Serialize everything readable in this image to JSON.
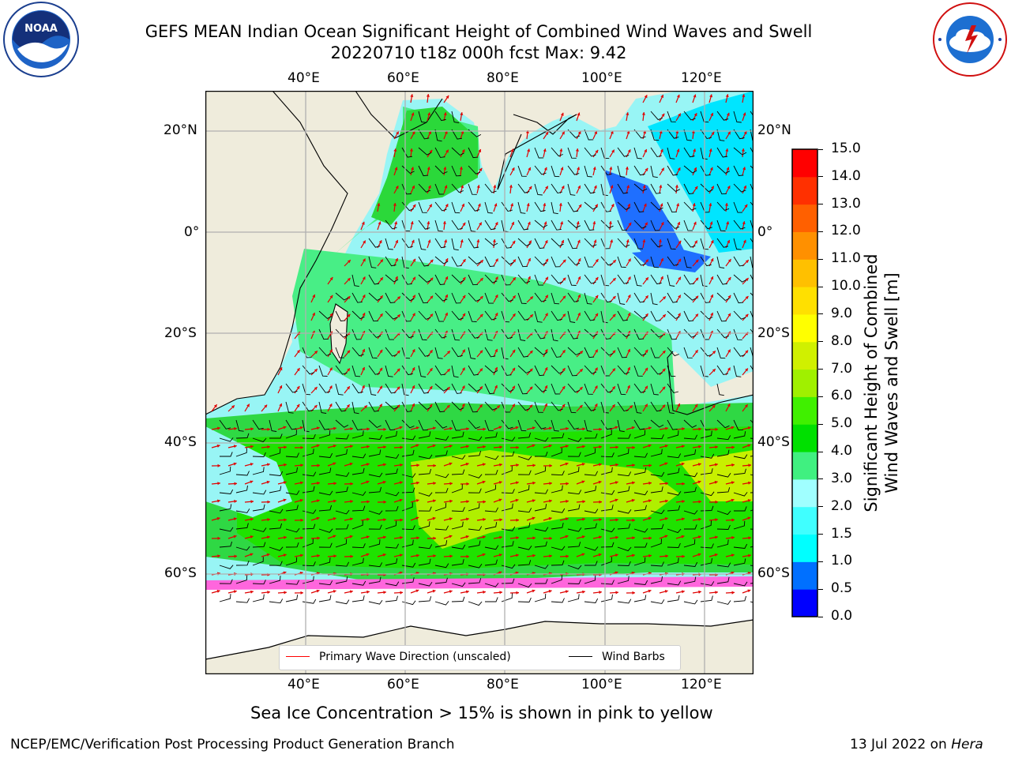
{
  "header": {
    "title_line1": "GEFS MEAN Indian Ocean Significant Height of Combined Wind Waves and Swell",
    "title_line2": "20220710 t18z 000h fcst   Max: 9.42"
  },
  "logos": {
    "left": "noaa-logo",
    "right": "nws-logo",
    "left_text": "NOAA"
  },
  "map": {
    "lon_labels": [
      "40°E",
      "60°E",
      "80°E",
      "100°E",
      "120°E"
    ],
    "lat_labels_left": [
      "20°N",
      "0°",
      "20°S",
      "40°S",
      "60°S"
    ],
    "lat_labels_right": [
      "20°N",
      "0°",
      "20°S",
      "40°S",
      "60°S"
    ],
    "land_color": "#efecdc",
    "ocean_min_color": "#98f5f5"
  },
  "legend": {
    "wave_direction": "Primary Wave Direction (unscaled)",
    "wind_barbs": "Wind Barbs",
    "wave_color": "#ff0000",
    "barb_color": "#000000"
  },
  "colorbar": {
    "title_line1": "Significant Height of Combined",
    "title_line2": "Wind Waves and Swell [m]",
    "ticks": [
      "0.0",
      "0.5",
      "1.0",
      "1.5",
      "2.0",
      "3.0",
      "4.0",
      "5.0",
      "6.0",
      "7.0",
      "8.0",
      "9.0",
      "10.0",
      "11.0",
      "12.0",
      "13.0",
      "14.0",
      "15.0"
    ],
    "colors": [
      "#0000ff",
      "#0070ff",
      "#00ffff",
      "#40ffff",
      "#a0ffff",
      "#40f080",
      "#00e000",
      "#40f000",
      "#a0f000",
      "#d0f000",
      "#ffff00",
      "#ffe000",
      "#ffc000",
      "#ff9000",
      "#ff6000",
      "#ff3000",
      "#ff0000"
    ]
  },
  "footer": {
    "sea_ice_note": "Sea Ice Concentration > 15% is shown in pink to yellow",
    "branch": "NCEP/EMC/Verification Post Processing Product Generation Branch",
    "date": "13 Jul 2022 on ",
    "host": "Hera"
  }
}
